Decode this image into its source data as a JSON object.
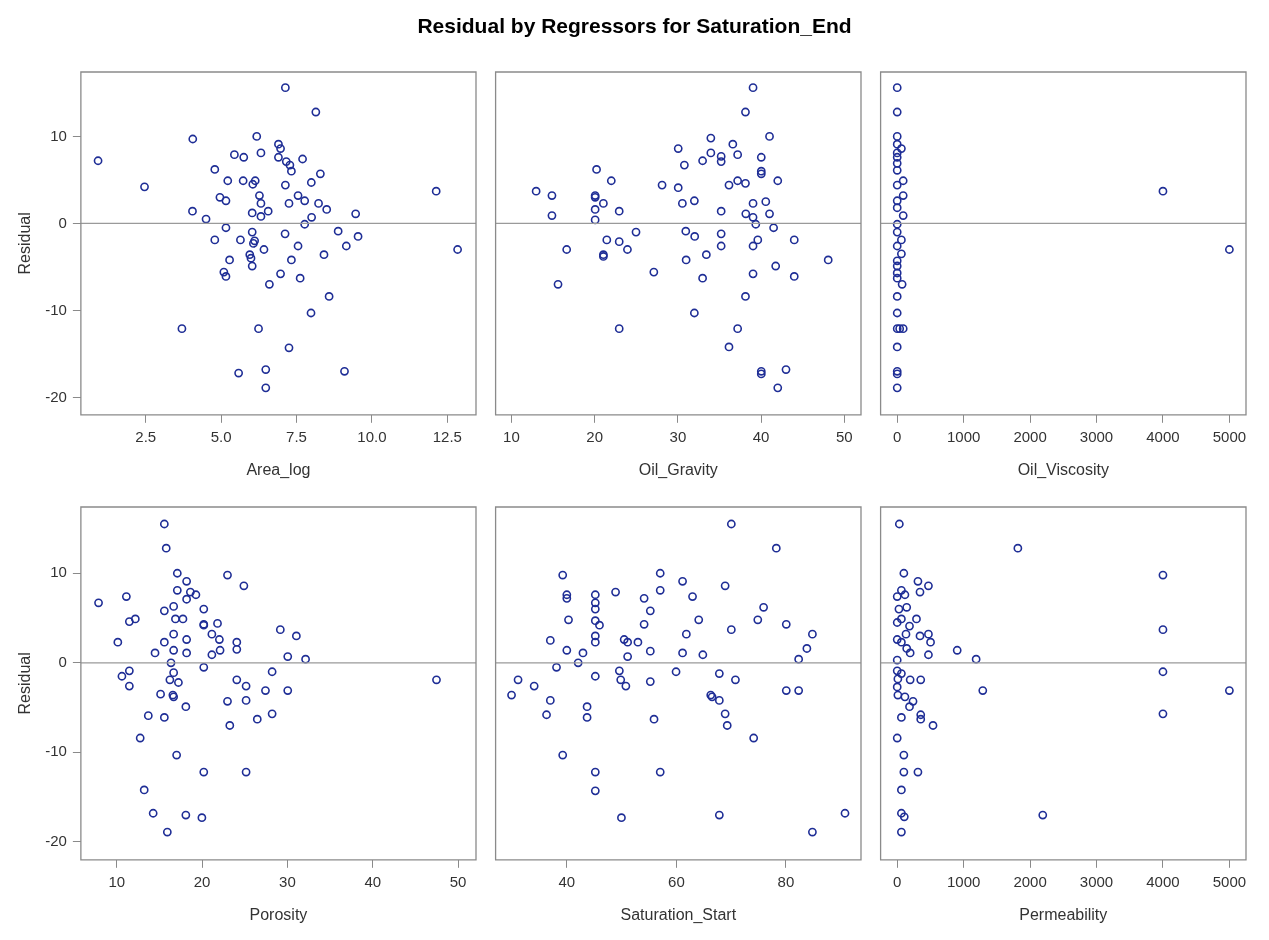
{
  "chart_data": [
    {
      "type": "scatter",
      "xlabel": "Area_log",
      "ylabel": "Residual",
      "xlim": [
        0.35,
        13.45
      ],
      "xticks": [
        2.5,
        {
          "value": 5,
          "label": "5.0"
        },
        7.5,
        {
          "value": 10,
          "label": "10.0"
        },
        12.5
      ],
      "ylim": [
        -22,
        17.4
      ],
      "yticks": [
        -20,
        -10,
        0,
        10
      ],
      "grid": false,
      "legend": false,
      "marker": "circle",
      "ref_lines": [
        {
          "axis": "y",
          "value": 0,
          "color": "#9a9a9a"
        }
      ],
      "series": [
        {
          "color": "#1f2e96",
          "x": [
            0.92,
            2.46,
            4.06,
            4.05,
            4.5,
            3.7,
            4.79,
            4.96,
            5.16,
            5.22,
            5.16,
            4.79,
            5.28,
            5.09,
            5.16,
            5.44,
            5.75,
            5.73,
            5.64,
            5.58,
            6.18,
            6.32,
            6.13,
            6.05,
            6.27,
            6.32,
            6.03,
            6.32,
            6.56,
            6.03,
            6.11,
            6.07,
            5.95,
            5.99,
            6.03,
            6.42,
            6.24,
            6.6,
            6.48,
            6.48,
            6.9,
            6.97,
            6.9,
            7.16,
            7.28,
            7.33,
            7.13,
            7.13,
            7.25,
            7.12,
            6.97,
            7.33,
            7.25,
            7.7,
            7.55,
            7.77,
            7.77,
            7.55,
            7.62,
            8.14,
            7.99,
            8.29,
            8.23,
            8.0,
            8.5,
            8.41,
            8.58,
            7.98,
            8.88,
            9.15,
            9.09,
            9.46,
            9.54,
            12.13,
            12.84
          ],
          "values": [
            7.2,
            4.2,
            9.7,
            1.4,
            0.5,
            -12.1,
            6.2,
            3.0,
            2.6,
            4.9,
            -0.5,
            -1.9,
            -4.2,
            -5.6,
            -6.1,
            7.9,
            7.6,
            4.9,
            -1.9,
            -17.2,
            10.0,
            8.1,
            4.9,
            4.5,
            3.2,
            2.3,
            1.2,
            0.8,
            1.4,
            -1.0,
            -2.0,
            -2.3,
            -3.6,
            -4.0,
            -4.9,
            -3.0,
            -12.1,
            -7.0,
            -16.8,
            -18.9,
            9.1,
            8.6,
            7.6,
            7.1,
            6.7,
            6.0,
            15.6,
            4.4,
            2.3,
            -1.2,
            -5.8,
            -4.2,
            -14.3,
            7.4,
            3.2,
            2.6,
            -0.1,
            -2.6,
            -6.3,
            12.8,
            4.7,
            5.7,
            2.3,
            0.7,
            1.6,
            -3.6,
            -8.4,
            -10.3,
            -0.9,
            -2.6,
            -17.0,
            1.1,
            -1.5,
            3.7,
            -3.0
          ]
        }
      ]
    },
    {
      "type": "scatter",
      "title": "Residual by Regressors for Saturation_End",
      "xlabel": "Oil_Gravity",
      "xlim": [
        8.1,
        52
      ],
      "xticks": [
        10,
        20,
        30,
        40,
        50
      ],
      "ylim": [
        -22,
        17.4
      ],
      "yticks": [
        -20,
        -10,
        0,
        10
      ],
      "tick_labels": "x",
      "grid": false,
      "legend": false,
      "marker": "circle",
      "ref_lines": [
        {
          "axis": "y",
          "value": 0,
          "color": "#9a9a9a"
        }
      ],
      "series": [
        {
          "color": "#1f2e96",
          "x": [
            12.97,
            14.87,
            14.87,
            16.64,
            15.6,
            20.23,
            20.06,
            20.06,
            21.05,
            20.06,
            20.06,
            22.0,
            22.95,
            21.46,
            21.05,
            21.05,
            22.95,
            23.94,
            24.97,
            22.95,
            27.11,
            28.1,
            30.04,
            30.78,
            30.04,
            30.54,
            31.98,
            30.95,
            32.02,
            30.99,
            31.98,
            32.97,
            33.96,
            33.96,
            35.2,
            35.2,
            32.97,
            33.42,
            35.2,
            35.2,
            35.2,
            36.6,
            37.18,
            36.14,
            37.18,
            38.12,
            38.12,
            39.03,
            38.16,
            39.03,
            39.03,
            39.36,
            39.6,
            39.03,
            39.03,
            38.12,
            37.18,
            36.14,
            40.02,
            40.02,
            40.02,
            40.02,
            40.02,
            41.01,
            40.56,
            41.01,
            41.5,
            42.0,
            41.75,
            42.99,
            42.0,
            43.98,
            43.98,
            48.06
          ],
          "values": [
            3.7,
            3.2,
            0.9,
            -3.0,
            -7.0,
            6.2,
            3.2,
            3.0,
            2.3,
            1.6,
            0.4,
            4.9,
            1.4,
            -1.9,
            -3.6,
            -3.8,
            -2.1,
            -3.0,
            -1.0,
            -12.1,
            -5.6,
            4.4,
            8.6,
            6.7,
            4.1,
            2.3,
            2.6,
            -0.9,
            -1.5,
            -4.2,
            -10.3,
            7.2,
            9.8,
            8.1,
            7.7,
            7.1,
            -6.3,
            -3.6,
            1.4,
            -1.2,
            -2.6,
            9.1,
            7.9,
            4.4,
            4.9,
            4.6,
            12.8,
            15.6,
            1.1,
            2.3,
            0.7,
            -0.1,
            -1.9,
            -2.6,
            -5.8,
            -8.4,
            -12.1,
            -14.2,
            7.6,
            6.0,
            5.7,
            -17.0,
            -17.3,
            10.0,
            2.5,
            1.1,
            -0.5,
            4.9,
            -4.9,
            -16.8,
            -18.9,
            -1.9,
            -6.1,
            -4.2
          ]
        }
      ]
    },
    {
      "type": "scatter",
      "xlabel": "Oil_Viscosity",
      "xlim": [
        -250,
        5250
      ],
      "xticks": [
        0,
        1000,
        2000,
        3000,
        4000,
        5000
      ],
      "ylim": [
        -22,
        17.4
      ],
      "yticks": [
        -20,
        -10,
        0,
        10
      ],
      "tick_labels": "x",
      "grid": false,
      "legend": false,
      "marker": "circle",
      "ref_lines": [
        {
          "axis": "y",
          "value": 0,
          "color": "#9a9a9a"
        }
      ],
      "series": [
        {
          "color": "#1f2e96",
          "x": [
            0,
            0,
            0,
            0,
            63,
            0,
            0,
            0,
            0,
            90,
            0,
            90,
            0,
            0,
            90,
            0,
            0,
            63,
            0,
            63,
            0,
            0,
            0,
            0,
            74,
            0,
            0,
            0,
            37,
            90,
            0,
            0,
            0,
            0,
            4000,
            5000
          ],
          "values": [
            15.6,
            12.8,
            10.0,
            9.1,
            8.6,
            8.1,
            7.6,
            6.9,
            6.1,
            4.9,
            4.4,
            3.2,
            2.6,
            1.8,
            0.9,
            -0.1,
            -1.0,
            -1.9,
            -2.6,
            -3.5,
            -4.3,
            -4.9,
            -5.7,
            -6.3,
            -7.0,
            -8.4,
            -10.3,
            -12.1,
            -12.1,
            -12.1,
            -14.2,
            -17.0,
            -17.3,
            -18.9,
            3.7,
            -3.0
          ]
        }
      ]
    },
    {
      "type": "scatter",
      "xlabel": "Porosity",
      "ylabel": "Residual",
      "xlim": [
        5.8,
        52.1
      ],
      "xticks": [
        10,
        20,
        30,
        40,
        50
      ],
      "ylim": [
        -22,
        17.4
      ],
      "yticks": [
        -20,
        -10,
        0,
        10
      ],
      "grid": false,
      "legend": false,
      "marker": "circle",
      "ref_lines": [
        {
          "axis": "y",
          "value": 0,
          "color": "#9a9a9a"
        }
      ],
      "series": [
        {
          "color": "#1f2e96",
          "x": [
            7.87,
            10.13,
            11.13,
            11.48,
            12.18,
            10.61,
            11.48,
            11.48,
            12.75,
            13.22,
            13.7,
            14.27,
            14.49,
            15.58,
            15.8,
            15.58,
            15.58,
            15.14,
            15.58,
            15.93,
            17.1,
            17.1,
            16.67,
            16.88,
            17.76,
            16.67,
            16.67,
            16.36,
            16.67,
            16.23,
            17.23,
            16.58,
            16.67,
            17.02,
            18.19,
            18.19,
            18.63,
            19.28,
            18.19,
            18.19,
            18.1,
            18.1,
            20.2,
            20.2,
            20.2,
            21.15,
            20.2,
            20.2,
            19.98,
            21.15,
            21.81,
            22.03,
            22.11,
            22.98,
            22.98,
            23.25,
            24.07,
            24.07,
            24.07,
            24.9,
            25.16,
            25.16,
            25.16,
            26.47,
            27.43,
            28.21,
            28.21,
            29.17,
            30.04,
            30.04,
            31.05,
            32.13,
            47.47
          ],
          "values": [
            6.7,
            2.3,
            7.4,
            4.6,
            4.9,
            -1.5,
            -0.9,
            -2.6,
            -8.4,
            -14.2,
            -5.9,
            -16.8,
            1.1,
            15.5,
            12.8,
            5.8,
            2.3,
            -3.5,
            -6.1,
            -18.9,
            10.0,
            8.1,
            6.3,
            4.9,
            4.9,
            3.2,
            1.4,
            0.0,
            -1.1,
            -1.9,
            -2.2,
            -3.6,
            -3.8,
            -10.3,
            9.1,
            7.1,
            7.9,
            7.6,
            2.6,
            1.1,
            -4.9,
            -17.0,
            6.0,
            4.3,
            4.2,
            3.2,
            -0.5,
            -12.2,
            -17.3,
            0.9,
            4.4,
            2.6,
            1.4,
            9.8,
            -4.3,
            -7.0,
            2.3,
            1.5,
            -1.9,
            8.6,
            -2.6,
            -4.2,
            -12.2,
            -6.3,
            -3.1,
            -1.0,
            -5.7,
            3.7,
            0.7,
            -3.1,
            3.0,
            0.4,
            -1.9
          ]
        }
      ]
    },
    {
      "type": "scatter",
      "xlabel": "Saturation_Start",
      "xlim": [
        27,
        93.7
      ],
      "xticks": [
        40,
        60,
        80
      ],
      "ylim": [
        -22,
        17.4
      ],
      "yticks": [
        -20,
        -10,
        0,
        10
      ],
      "tick_labels": "x",
      "grid": false,
      "legend": false,
      "marker": "circle",
      "ref_lines": [
        {
          "axis": "y",
          "value": 0,
          "color": "#9a9a9a"
        }
      ],
      "series": [
        {
          "color": "#1f2e96",
          "x": [
            29.91,
            31.1,
            34.04,
            36.3,
            36.99,
            36.99,
            38.12,
            39.25,
            40.0,
            40.0,
            40.31,
            40.0,
            39.25,
            42.95,
            42.07,
            43.7,
            43.7,
            45.2,
            45.2,
            45.2,
            45.2,
            45.96,
            45.2,
            45.2,
            45.2,
            45.2,
            45.2,
            48.9,
            49.59,
            49.84,
            50.78,
            49.97,
            50.47,
            51.1,
            52.98,
            51.1,
            54.11,
            55.24,
            54.11,
            55.24,
            55.24,
            55.92,
            57.05,
            57.05,
            57.05,
            59.94,
            61.13,
            61.82,
            61.13,
            62.95,
            64.08,
            64.83,
            66.27,
            66.52,
            67.84,
            67.84,
            68.9,
            69.28,
            67.84,
            68.9,
            70.03,
            70.03,
            70.78,
            74.11,
            74.86,
            75.92,
            78.24,
            80.06,
            80.06,
            82.32,
            82.32,
            83.82,
            84.83,
            84.83,
            90.78
          ],
          "values": [
            -3.6,
            -1.9,
            -2.6,
            -5.8,
            -4.2,
            2.5,
            -0.5,
            9.8,
            7.6,
            7.2,
            4.8,
            1.4,
            -10.3,
            1.1,
            0.0,
            -4.9,
            -6.1,
            7.6,
            6.7,
            6.0,
            4.7,
            4.2,
            3.0,
            2.3,
            -1.5,
            -12.2,
            -14.3,
            7.9,
            -0.9,
            -1.9,
            -2.6,
            -17.3,
            2.6,
            2.3,
            2.3,
            0.7,
            7.2,
            5.8,
            4.3,
            1.3,
            -2.1,
            -6.3,
            10.0,
            8.1,
            -12.2,
            -1.0,
            9.1,
            3.2,
            1.1,
            7.4,
            4.8,
            0.9,
            -3.6,
            -3.8,
            -1.2,
            -4.2,
            -5.7,
            -7.0,
            -17.0,
            8.6,
            15.5,
            3.7,
            -1.9,
            -8.4,
            4.8,
            6.2,
            12.8,
            4.3,
            -3.1,
            -3.1,
            0.4,
            1.6,
            3.2,
            -18.9,
            -16.8
          ]
        }
      ]
    },
    {
      "type": "scatter",
      "xlabel": "Permeability",
      "xlim": [
        -250,
        5250
      ],
      "xticks": [
        0,
        1000,
        2000,
        3000,
        4000,
        5000
      ],
      "ylim": [
        -22,
        17.4
      ],
      "yticks": [
        -20,
        -10,
        0,
        10
      ],
      "tick_labels": "x",
      "grid": false,
      "legend": false,
      "marker": "circle",
      "ref_lines": [
        {
          "axis": "y",
          "value": 0,
          "color": "#9a9a9a"
        }
      ],
      "series": [
        {
          "color": "#1f2e96",
          "x": [
            32,
            1816,
            4000,
            4000,
            4000,
            4000,
            5000,
            100,
            312,
            470,
            343,
            63,
            0,
            116,
            143,
            26,
            290,
            0,
            63,
            185,
            132,
            343,
            470,
            502,
            0,
            63,
            143,
            195,
            470,
            903,
            1188,
            0,
            0,
            63,
            10,
            195,
            354,
            0,
            1288,
            10,
            116,
            238,
            185,
            63,
            354,
            354,
            539,
            0,
            100,
            100,
            312,
            63,
            63,
            106,
            2191,
            63
          ],
          "values": [
            15.5,
            12.8,
            9.8,
            3.7,
            -1.0,
            -5.7,
            -3.1,
            10.0,
            9.1,
            8.6,
            7.9,
            8.1,
            7.4,
            7.6,
            6.2,
            6.0,
            4.9,
            4.5,
            4.9,
            4.1,
            3.2,
            3.0,
            3.2,
            2.3,
            2.6,
            2.3,
            1.6,
            1.1,
            0.9,
            1.4,
            0.4,
            0.3,
            -0.9,
            -1.2,
            -1.8,
            -1.9,
            -1.9,
            -2.7,
            -3.1,
            -3.6,
            -3.8,
            -4.3,
            -4.9,
            -6.1,
            -5.8,
            -6.3,
            -7.0,
            -8.4,
            -10.3,
            -12.2,
            -12.2,
            -14.2,
            -16.8,
            -17.2,
            -17.0,
            -18.9
          ]
        }
      ]
    }
  ]
}
